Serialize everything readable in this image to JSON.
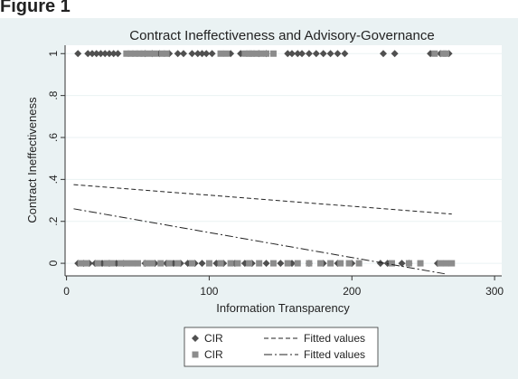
{
  "header": "Figure 1",
  "chart_data": {
    "type": "scatter",
    "title": "Contract Ineffectiveness and Advisory-Governance",
    "x_label": "Information Transparency",
    "y_label": "Contract Ineffectiveness",
    "xlim": [
      -1,
      305
    ],
    "ylim": [
      -0.06,
      1.04
    ],
    "xticks": [
      0,
      100,
      200,
      300
    ],
    "yticks": [
      0,
      {
        "value": 0.2,
        "label": ".2"
      },
      {
        "value": 0.4,
        "label": ".4"
      },
      {
        "value": 0.6,
        "label": ".6"
      },
      {
        "value": 0.8,
        "label": ".8"
      },
      1
    ],
    "grid": true,
    "legend": "bottom",
    "series": [
      {
        "name": "CIR",
        "marker": "diamond",
        "color": "#505050",
        "x": [
          8,
          15,
          18,
          21,
          24,
          27,
          30,
          33,
          36,
          55,
          60,
          65,
          72,
          78,
          82,
          88,
          92,
          95,
          98,
          102,
          115,
          122,
          135,
          140,
          155,
          158,
          162,
          165,
          170,
          175,
          180,
          185,
          190,
          195,
          222,
          230,
          255,
          262,
          268,
          8,
          12,
          16,
          20,
          25,
          30,
          35,
          40,
          55,
          62,
          70,
          75,
          80,
          85,
          90,
          95,
          105,
          110,
          118,
          125,
          130,
          140,
          150,
          158,
          170,
          180,
          190,
          200,
          220,
          225,
          235,
          240,
          260
        ],
        "y": [
          1,
          1,
          1,
          1,
          1,
          1,
          1,
          1,
          1,
          1,
          1,
          1,
          1,
          1,
          1,
          1,
          1,
          1,
          1,
          1,
          1,
          1,
          1,
          1,
          1,
          1,
          1,
          1,
          1,
          1,
          1,
          1,
          1,
          1,
          1,
          1,
          1,
          1,
          1,
          0,
          0,
          0,
          0,
          0,
          0,
          0,
          0,
          0,
          0,
          0,
          0,
          0,
          0,
          0,
          0,
          0,
          0,
          0,
          0,
          0,
          0,
          0,
          0,
          0,
          0,
          0,
          0,
          0,
          0,
          0,
          0,
          0
        ]
      },
      {
        "name": "Fitted values",
        "line": "dash",
        "color": "#222222",
        "x": [
          5,
          270
        ],
        "y": [
          0.375,
          0.235
        ]
      },
      {
        "name": "CIR",
        "marker": "square",
        "color": "#8c8c8c",
        "x": [
          42,
          45,
          48,
          51,
          54,
          58,
          62,
          67,
          70,
          108,
          112,
          125,
          128,
          130,
          133,
          136,
          140,
          145,
          258,
          264,
          266,
          10,
          14,
          22,
          28,
          32,
          38,
          42,
          46,
          50,
          56,
          60,
          66,
          72,
          78,
          88,
          100,
          108,
          115,
          120,
          128,
          135,
          145,
          155,
          162,
          170,
          178,
          185,
          192,
          198,
          205,
          228,
          240,
          248,
          262,
          266,
          270
        ],
        "y": [
          1,
          1,
          1,
          1,
          1,
          1,
          1,
          1,
          1,
          1,
          1,
          1,
          1,
          1,
          1,
          1,
          1,
          1,
          1,
          1,
          1,
          0,
          0,
          0,
          0,
          0,
          0,
          0,
          0,
          0,
          0,
          0,
          0,
          0,
          0,
          0,
          0,
          0,
          0,
          0,
          0,
          0,
          0,
          0,
          0,
          0,
          0,
          0,
          0,
          0,
          0,
          0,
          0,
          0,
          0,
          0,
          0
        ]
      },
      {
        "name": "Fitted values",
        "line": "dashdot",
        "color": "#222222",
        "x": [
          5,
          265
        ],
        "y": [
          0.26,
          -0.05
        ]
      }
    ]
  }
}
